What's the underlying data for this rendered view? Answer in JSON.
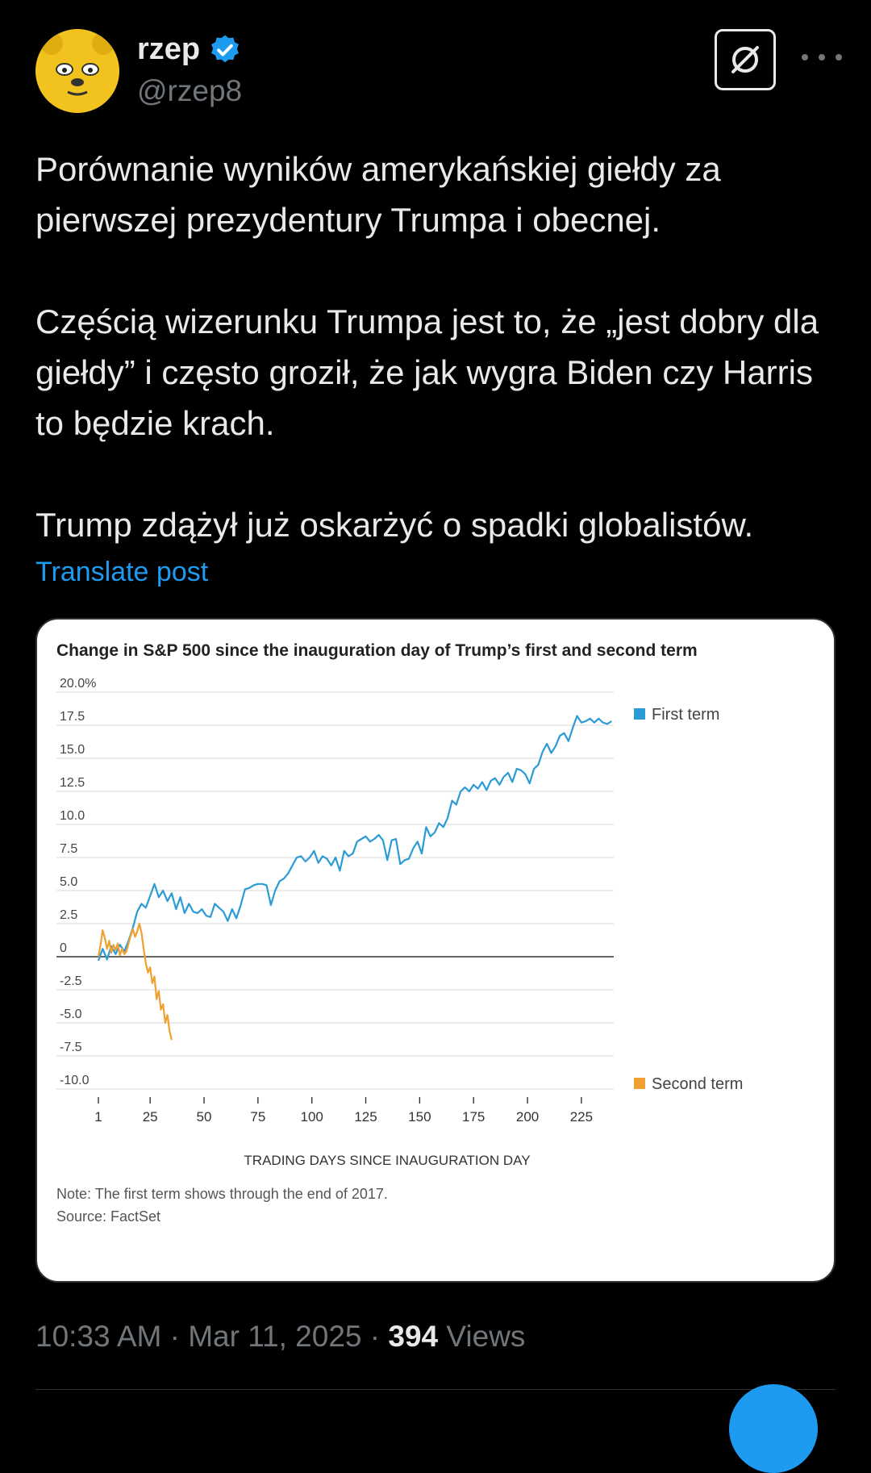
{
  "post": {
    "display_name": "rzep",
    "handle": "@rzep8",
    "paragraphs": [
      "Porównanie wyników amerykańskiej giełdy za pierwszej prezydentury Trumpa i obecnej.",
      "Częścią wizerunku Trumpa jest to, że „jest dobry dla giełdy” i często groził, że jak wygra Biden czy Harris to będzie krach.",
      "Trump zdążył już oskarżyć o spadki globalistów."
    ],
    "translate_label": "Translate post",
    "timestamp": "10:33 AM · Mar 11, 2025 · ",
    "views_count": "394",
    "views_label": " Views"
  },
  "icons": {
    "avatar": "bear-avatar-icon",
    "verified": "verified-badge-icon",
    "grok": "grok-icon",
    "more": "more-dots-icon"
  },
  "colors": {
    "background": "#000000",
    "text": "#e7e9ea",
    "muted": "#71767b",
    "link": "#1d9bf0",
    "first_term": "#2b9bd6",
    "second_term": "#f0a030"
  },
  "chart_data": {
    "type": "line",
    "title": "Change in S&P 500 since the inauguration day of Trump’s first and second term",
    "xlabel": "TRADING DAYS SINCE INAUGURATION DAY",
    "ylabel": "",
    "xlim": [
      1,
      240
    ],
    "ylim": [
      -10,
      20
    ],
    "x_ticks": [
      1,
      25,
      50,
      75,
      100,
      125,
      150,
      175,
      200,
      225
    ],
    "y_ticks": [
      20,
      17.5,
      15,
      12.5,
      10,
      7.5,
      5,
      2.5,
      0,
      -2.5,
      -5,
      -7.5,
      -10
    ],
    "y_tick_labels": [
      "20.0%",
      "17.5",
      "15.0",
      "12.5",
      "10.0",
      "7.5",
      "5.0",
      "2.5",
      "0",
      "-2.5",
      "-5.0",
      "-7.5",
      "-10.0"
    ],
    "legend_position": "right",
    "grid": true,
    "series": [
      {
        "name": "First term",
        "color": "#2b9bd6",
        "x": [
          1,
          3,
          5,
          7,
          9,
          11,
          13,
          15,
          17,
          19,
          21,
          23,
          25,
          27,
          29,
          31,
          33,
          35,
          37,
          39,
          41,
          43,
          45,
          47,
          49,
          51,
          53,
          55,
          57,
          59,
          61,
          63,
          65,
          67,
          69,
          71,
          73,
          75,
          77,
          79,
          81,
          83,
          85,
          87,
          89,
          91,
          93,
          95,
          97,
          99,
          101,
          103,
          105,
          107,
          109,
          111,
          113,
          115,
          117,
          119,
          121,
          123,
          125,
          127,
          129,
          131,
          133,
          135,
          137,
          139,
          141,
          143,
          145,
          147,
          149,
          151,
          153,
          155,
          157,
          159,
          161,
          163,
          165,
          167,
          169,
          171,
          173,
          175,
          177,
          179,
          181,
          183,
          185,
          187,
          189,
          191,
          193,
          195,
          197,
          199,
          201,
          203,
          205,
          207,
          209,
          211,
          213,
          215,
          217,
          219,
          221,
          223,
          225,
          227,
          229,
          231,
          233,
          235,
          237,
          239
        ],
        "values": [
          -0.3,
          0.6,
          -0.2,
          0.8,
          0.2,
          0.9,
          0.4,
          1.2,
          2.2,
          3.4,
          4.0,
          3.7,
          4.6,
          5.5,
          4.5,
          5.0,
          4.2,
          4.8,
          3.6,
          4.5,
          3.3,
          4.0,
          3.4,
          3.3,
          3.6,
          3.1,
          3.0,
          4.0,
          3.7,
          3.4,
          2.7,
          3.6,
          2.9,
          3.9,
          5.1,
          5.2,
          5.4,
          5.5,
          5.5,
          5.4,
          3.9,
          5.0,
          5.7,
          5.9,
          6.3,
          6.9,
          7.5,
          7.6,
          7.2,
          7.5,
          8.0,
          7.1,
          7.6,
          7.4,
          6.9,
          7.5,
          6.5,
          8.0,
          7.6,
          7.8,
          8.7,
          8.9,
          9.1,
          8.7,
          8.9,
          9.2,
          8.8,
          7.3,
          8.8,
          8.9,
          7.0,
          7.3,
          7.4,
          8.2,
          8.7,
          7.8,
          9.8,
          9.1,
          9.4,
          10.1,
          9.8,
          10.5,
          11.8,
          11.5,
          12.5,
          12.8,
          12.5,
          13.0,
          12.7,
          13.2,
          12.6,
          13.3,
          13.5,
          13.0,
          13.6,
          13.9,
          13.2,
          14.2,
          14.1,
          13.8,
          13.1,
          14.2,
          14.5,
          15.5,
          16.1,
          15.4,
          15.9,
          16.7,
          16.9,
          16.3,
          17.3,
          18.2,
          17.7,
          17.8,
          18.0,
          17.7,
          18.0,
          17.7,
          17.6,
          17.8
        ]
      },
      {
        "name": "Second term",
        "color": "#f0a030",
        "x": [
          1,
          2,
          3,
          4,
          5,
          6,
          7,
          8,
          9,
          10,
          11,
          12,
          13,
          14,
          15,
          16,
          17,
          18,
          19,
          20,
          21,
          22,
          23,
          24,
          25,
          26,
          27,
          28,
          29,
          30,
          31,
          32,
          33,
          34,
          35
        ],
        "values": [
          0,
          0.9,
          2.0,
          1.4,
          0.6,
          1.2,
          0.3,
          0.9,
          0.5,
          1.0,
          0.1,
          0.6,
          0.2,
          0.4,
          1.0,
          1.6,
          2.1,
          1.5,
          1.9,
          2.5,
          1.8,
          0.6,
          -0.5,
          -1.2,
          -0.8,
          -2.0,
          -1.5,
          -3.2,
          -2.6,
          -4.0,
          -3.6,
          -5.0,
          -4.4,
          -5.6,
          -6.3
        ]
      }
    ],
    "notes": [
      "Note: The first term shows through the end of 2017.",
      "Source: FactSet"
    ]
  }
}
